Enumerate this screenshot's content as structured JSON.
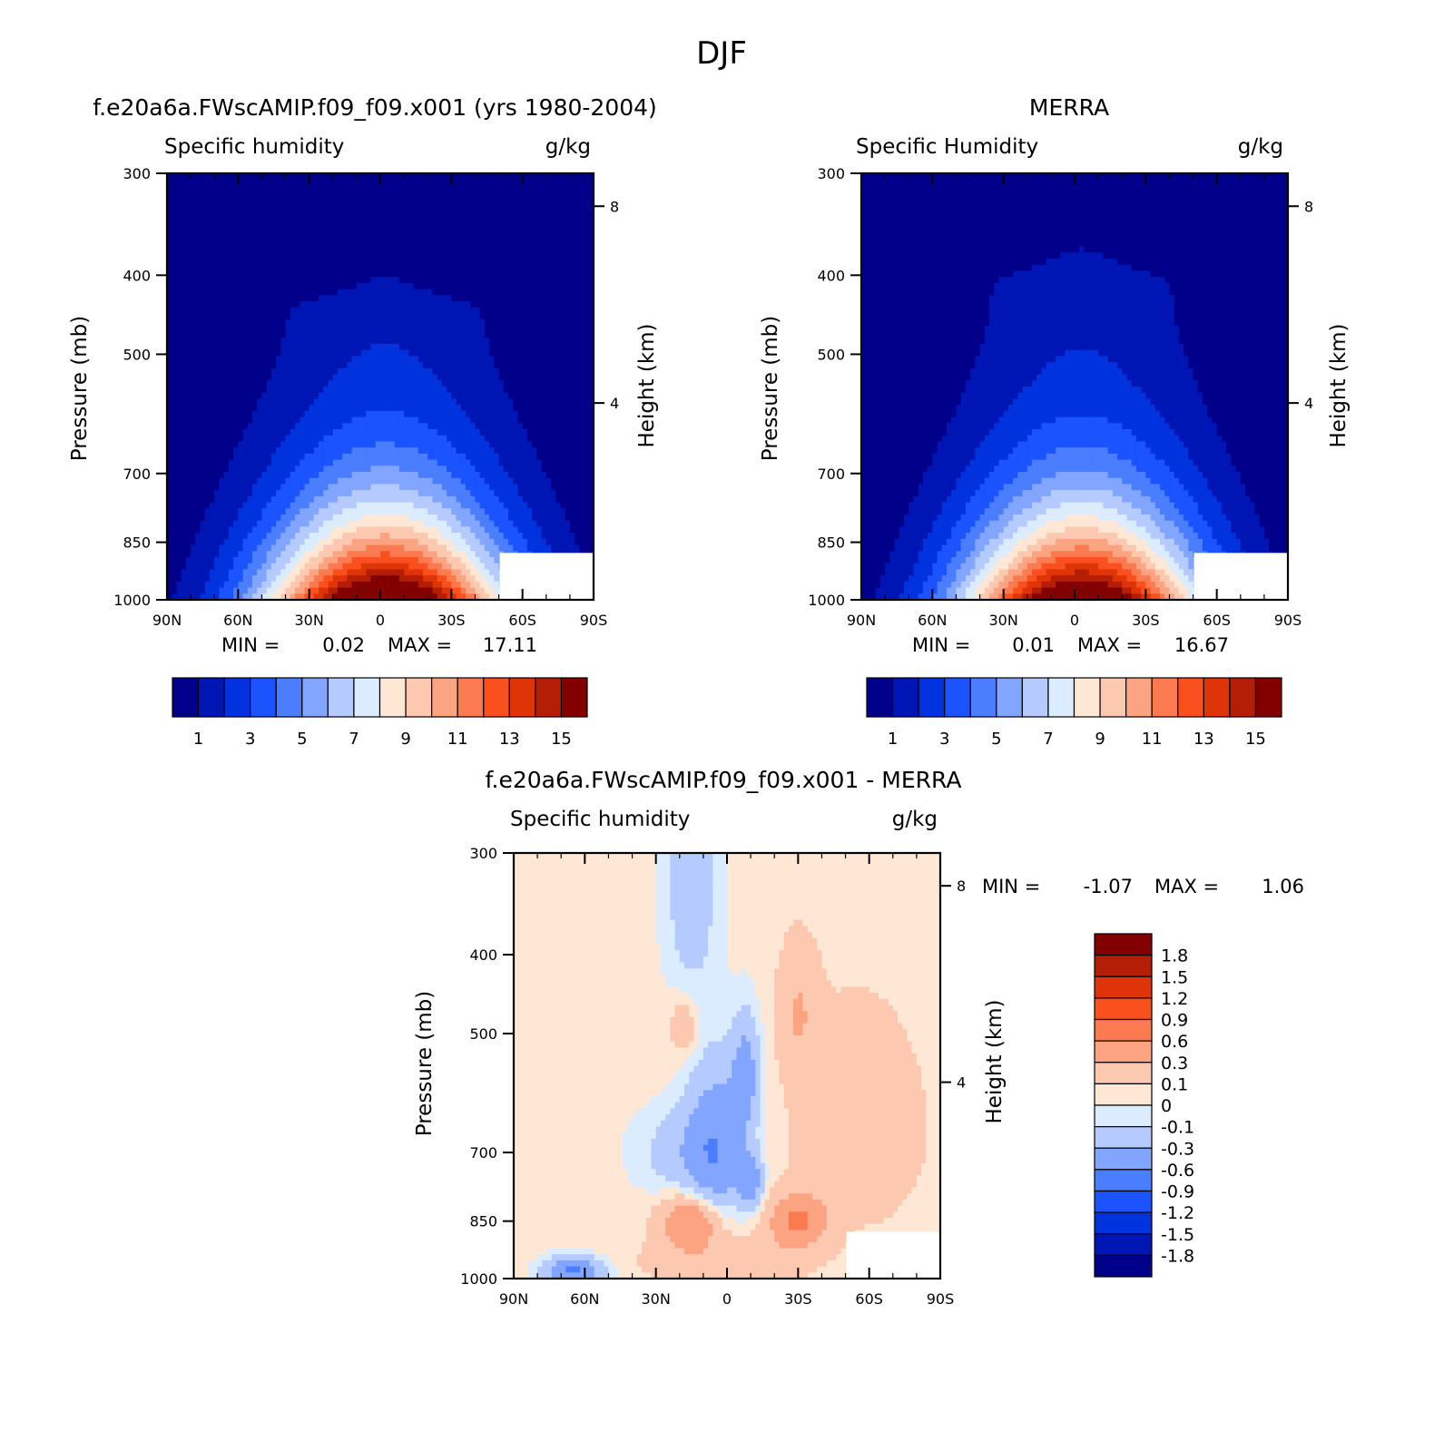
{
  "figure": {
    "title": "DJF"
  },
  "palettes": {
    "abs": [
      "#00008b",
      "#0016b4",
      "#0033dd",
      "#1a53ff",
      "#4b7dff",
      "#82a6ff",
      "#b5cbff",
      "#dcecff",
      "#fee8d5",
      "#fdc8b0",
      "#fca482",
      "#fb7a50",
      "#f9501e",
      "#df3408",
      "#b51e06",
      "#820000"
    ],
    "diff": [
      "#00008b",
      "#0016b4",
      "#0033dd",
      "#1a53ff",
      "#4b7dff",
      "#82a6ff",
      "#b5cbff",
      "#dcecff",
      "#fee8d5",
      "#fdc8b0",
      "#fca482",
      "#fb7a50",
      "#f9501e",
      "#df3408",
      "#b51e06",
      "#820000"
    ]
  },
  "chart_data": [
    {
      "id": "model",
      "type": "heatmap",
      "title": "f.e20a6a.FWscAMIP.f09_f09.x001 (yrs 1980-2004)",
      "left_label": "Specific humidity",
      "right_label": "g/kg",
      "ylabel": "Pressure (mb)",
      "y2label": "Height (km)",
      "xticks": [
        "90N",
        "60N",
        "30N",
        "0",
        "30S",
        "60S",
        "90S"
      ],
      "yticks": [
        "300",
        "400",
        "500",
        "700",
        "850",
        "1000"
      ],
      "y2ticks": [
        "8",
        "4"
      ],
      "xlim": [
        90,
        -90
      ],
      "ylim": [
        1000,
        300
      ],
      "stats": {
        "min_label": "MIN =",
        "min": "0.02",
        "max_label": "MAX =",
        "max": "17.11"
      },
      "colorbar": {
        "orientation": "horizontal",
        "labels": [
          "1",
          "3",
          "5",
          "7",
          "9",
          "11",
          "13",
          "15"
        ]
      },
      "field": {
        "peak": 17.0,
        "center_lat": -2,
        "top_p": 400,
        "halfwidth": 62,
        "decay": 4.4,
        "lat_scale": 55,
        "min": 0.02
      }
    },
    {
      "id": "obs",
      "type": "heatmap",
      "title": "MERRA",
      "left_label": "Specific Humidity",
      "right_label": "g/kg",
      "ylabel": "Pressure (mb)",
      "y2label": "Height (km)",
      "xticks": [
        "90N",
        "60N",
        "30N",
        "0",
        "30S",
        "60S",
        "90S"
      ],
      "yticks": [
        "300",
        "400",
        "500",
        "700",
        "850",
        "1000"
      ],
      "y2ticks": [
        "8",
        "4"
      ],
      "xlim": [
        90,
        -90
      ],
      "ylim": [
        1000,
        300
      ],
      "stats": {
        "min_label": "MIN =",
        "min": "0.01",
        "max_label": "MAX =",
        "max": "16.67"
      },
      "colorbar": {
        "orientation": "horizontal",
        "labels": [
          "1",
          "3",
          "5",
          "7",
          "9",
          "11",
          "13",
          "15"
        ]
      },
      "field": {
        "peak": 16.6,
        "center_lat": -3,
        "top_p": 370,
        "halfwidth": 60,
        "decay": 4.4,
        "lat_scale": 54,
        "min": 0.01
      }
    },
    {
      "id": "diff",
      "type": "heatmap",
      "title": "f.e20a6a.FWscAMIP.f09_f09.x001 - MERRA",
      "left_label": "Specific humidity",
      "right_label": "g/kg",
      "ylabel": "Pressure (mb)",
      "y2label": "Height (km)",
      "xticks": [
        "90N",
        "60N",
        "30N",
        "0",
        "30S",
        "60S",
        "90S"
      ],
      "yticks": [
        "300",
        "400",
        "500",
        "700",
        "850",
        "1000"
      ],
      "y2ticks": [
        "8",
        "4"
      ],
      "xlim": [
        90,
        -90
      ],
      "ylim": [
        1000,
        300
      ],
      "stats": {
        "min_label": "MIN =",
        "min": "-1.07",
        "max_label": "MAX =",
        "max": "1.06"
      },
      "colorbar": {
        "orientation": "vertical",
        "labels": [
          "1.8",
          "1.5",
          "1.2",
          "0.9",
          "0.6",
          "0.3",
          "0.1",
          "0",
          "-0.1",
          "-0.3",
          "-0.6",
          "-0.9",
          "-1.2",
          "-1.5",
          "-1.8"
        ]
      },
      "anomalies": [
        {
          "lat": 5,
          "p": 690,
          "amp": -0.55,
          "slat": 12,
          "sp": 150
        },
        {
          "lat": -8,
          "p": 560,
          "amp": -0.45,
          "slat": 6,
          "sp": 90
        },
        {
          "lat": -10,
          "p": 760,
          "amp": -0.5,
          "slat": 5,
          "sp": 60
        },
        {
          "lat": 15,
          "p": 330,
          "amp": -0.25,
          "slat": 12,
          "sp": 120
        },
        {
          "lat": 20,
          "p": 700,
          "amp": -0.22,
          "slat": 20,
          "sp": 90
        },
        {
          "lat": 15,
          "p": 850,
          "amp": 0.6,
          "slat": 12,
          "sp": 60
        },
        {
          "lat": -30,
          "p": 850,
          "amp": 0.6,
          "slat": 12,
          "sp": 60
        },
        {
          "lat": -30,
          "p": 470,
          "amp": 0.25,
          "slat": 8,
          "sp": 80
        },
        {
          "lat": -55,
          "p": 650,
          "amp": 0.2,
          "slat": 25,
          "sp": 180
        },
        {
          "lat": 18,
          "p": 490,
          "amp": 0.22,
          "slat": 6,
          "sp": 40
        },
        {
          "lat": 65,
          "p": 980,
          "amp": -0.7,
          "slat": 12,
          "sp": 40
        },
        {
          "lat": 0,
          "p": 950,
          "amp": 0.25,
          "slat": 30,
          "sp": 60
        }
      ],
      "base": 0.05
    }
  ]
}
